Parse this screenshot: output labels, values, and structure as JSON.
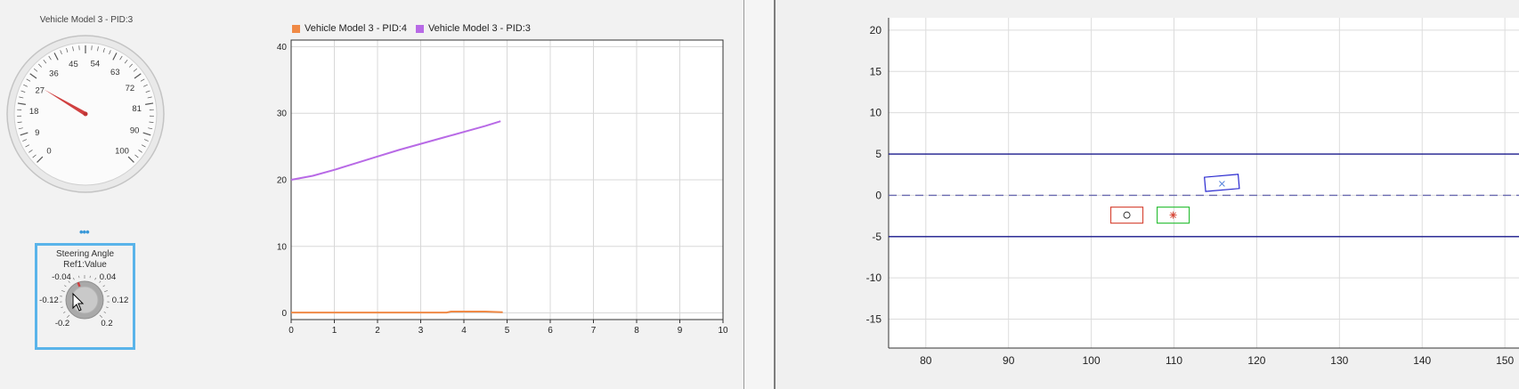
{
  "gauge": {
    "title": "Vehicle Model 3 - PID:3",
    "min": 0,
    "max": 100,
    "value": 28,
    "tick_labels": [
      "0",
      "9",
      "18",
      "27",
      "36",
      "45",
      "54",
      "63",
      "72",
      "81",
      "90",
      "100"
    ]
  },
  "knob": {
    "more_indicator": "•••",
    "title": "Steering Angle",
    "subtitle": "Ref1:Value",
    "value": -0.03,
    "labels": [
      "-0.2",
      "-0.12",
      "-0.04",
      "0.04",
      "0.12",
      "0.2"
    ]
  },
  "time_plot": {
    "legend": [
      {
        "label": "Vehicle Model 3 - PID:4",
        "color": "#f08a46"
      },
      {
        "label": "Vehicle Model 3 - PID:3",
        "color": "#b86ae6"
      }
    ]
  },
  "chart_data": [
    {
      "type": "line",
      "title": "",
      "xlabel": "",
      "ylabel": "",
      "xlim": [
        0,
        10
      ],
      "ylim": [
        -1,
        41
      ],
      "x_ticks": [
        "0",
        "1",
        "2",
        "3",
        "4",
        "5",
        "6",
        "7",
        "8",
        "9",
        "10"
      ],
      "y_ticks": [
        "0",
        "10",
        "20",
        "30",
        "40"
      ],
      "grid": true,
      "legend_position": "top",
      "series": [
        {
          "name": "Vehicle Model 3 - PID:4",
          "color": "#f08a46",
          "x": [
            0,
            1,
            2,
            3,
            3.6,
            3.7,
            4.5,
            4.9
          ],
          "y": [
            0.05,
            0.05,
            0.05,
            0.05,
            0.05,
            0.2,
            0.2,
            0.1
          ]
        },
        {
          "name": "Vehicle Model 3 - PID:3",
          "color": "#b86ae6",
          "x": [
            0,
            0.5,
            1,
            1.5,
            2,
            2.5,
            3,
            3.5,
            4,
            4.5,
            4.85
          ],
          "y": [
            20,
            20.6,
            21.5,
            22.5,
            23.5,
            24.5,
            25.4,
            26.3,
            27.2,
            28.1,
            28.8
          ]
        }
      ]
    },
    {
      "type": "scatter",
      "title": "",
      "xlabel": "",
      "ylabel": "",
      "xlim": [
        75.5,
        153
      ],
      "ylim": [
        -18.5,
        21.5
      ],
      "x_ticks": [
        "80",
        "90",
        "100",
        "110",
        "120",
        "130",
        "140",
        "150"
      ],
      "y_ticks": [
        "20",
        "15",
        "10",
        "5",
        "0",
        "-5",
        "-10",
        "-15"
      ],
      "grid": true,
      "lane_lines": [
        {
          "y": 5,
          "style": "solid",
          "color": "#1a1a8c"
        },
        {
          "y": 0,
          "style": "dashed",
          "color": "#6a6ab0"
        },
        {
          "y": -5,
          "style": "solid",
          "color": "#1a1a8c"
        }
      ],
      "vehicles": [
        {
          "x": 104.3,
          "y": -2.4,
          "marker": "o",
          "color": "#d84a3a"
        },
        {
          "x": 109.9,
          "y": -2.4,
          "marker": "*",
          "color": "#2fbf3a"
        },
        {
          "x": 115.8,
          "y": 1.4,
          "marker": "x",
          "color": "#2a2ad0"
        }
      ]
    }
  ]
}
